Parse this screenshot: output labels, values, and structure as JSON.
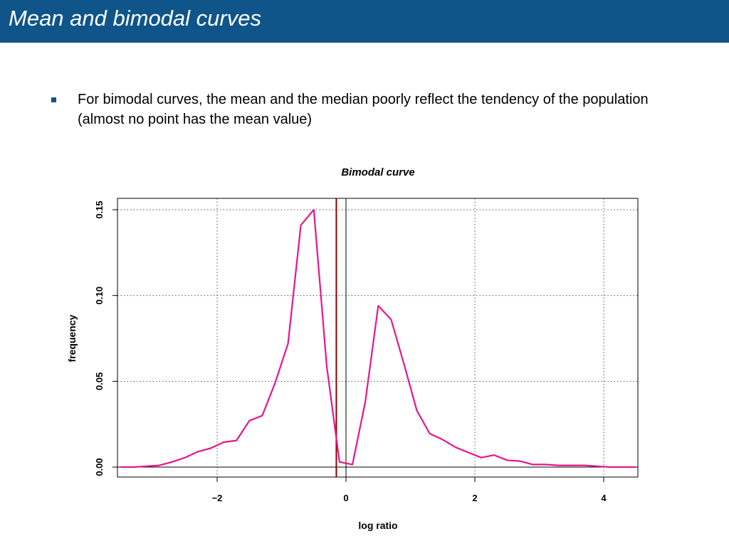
{
  "header": {
    "title": "Mean and bimodal curves"
  },
  "bullets": [
    {
      "text": "For bimodal curves, the mean and the median poorly reflect the tendency of the population (almost no point has the mean value)"
    }
  ],
  "colors": {
    "header_bg": "#0f5589",
    "curve": "#e8158c",
    "mean_line": "#8b0000",
    "zero_line": "#000000"
  },
  "chart_data": {
    "type": "line",
    "title": "Bimodal curve",
    "xlabel": "log ratio",
    "ylabel": "frequency",
    "xlim": [
      -3.5,
      4.5
    ],
    "ylim": [
      0,
      0.155
    ],
    "x_ticks": [
      -2,
      0,
      2,
      4
    ],
    "x_tick_labels": [
      "−2",
      "0",
      "2",
      "4"
    ],
    "y_ticks": [
      0,
      0.05,
      0.1,
      0.15
    ],
    "y_tick_labels": [
      "0.00",
      "0.05",
      "0.10",
      "0.15"
    ],
    "grid": true,
    "mean_value": -0.15,
    "reference_x": 0,
    "series": [
      {
        "x": [
          -3.5,
          -3.3,
          -3.1,
          -2.9,
          -2.7,
          -2.5,
          -2.3,
          -2.1,
          -1.9,
          -1.7,
          -1.5,
          -1.3,
          -1.1,
          -0.9,
          -0.7,
          -0.5,
          -0.3,
          -0.1,
          0.1,
          0.3,
          0.5,
          0.7,
          0.9,
          1.1,
          1.3,
          1.5,
          1.7,
          1.9,
          2.1,
          2.3,
          2.5,
          2.7,
          2.9,
          3.1,
          3.3,
          3.5,
          3.7,
          3.9,
          4.1,
          4.3,
          4.5
        ],
        "values": [
          0,
          0,
          0.0005,
          0.001,
          0.003,
          0.0055,
          0.009,
          0.011,
          0.0145,
          0.0155,
          0.027,
          0.03,
          0.049,
          0.072,
          0.141,
          0.15,
          0.059,
          0.003,
          0.0015,
          0.038,
          0.094,
          0.086,
          0.06,
          0.033,
          0.0195,
          0.016,
          0.0115,
          0.0085,
          0.0055,
          0.007,
          0.004,
          0.0035,
          0.0015,
          0.0015,
          0.001,
          0.001,
          0.001,
          0.0005,
          0,
          0,
          0
        ]
      }
    ]
  }
}
